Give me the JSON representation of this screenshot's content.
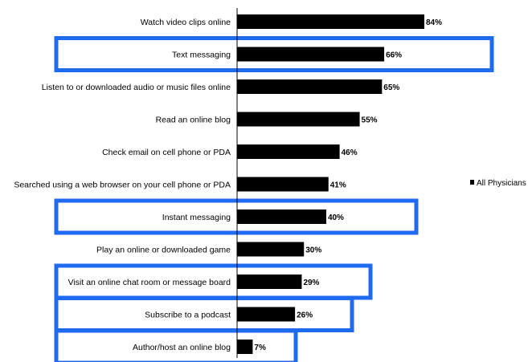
{
  "chart_data": {
    "type": "bar",
    "orientation": "horizontal",
    "categories": [
      "Watch video clips online",
      "Text messaging",
      "Listen to or downloaded audio or music files online",
      "Read an online blog",
      "Check email on cell phone or PDA",
      "Searched using a web browser on your cell phone or PDA",
      "Instant messaging",
      "Play an online or downloaded game",
      "Visit an online chat room or message board",
      "Subscribe to a podcast",
      "Author/host an online blog"
    ],
    "series": [
      {
        "name": "All Physicians",
        "values": [
          84,
          66,
          65,
          55,
          46,
          41,
          40,
          30,
          29,
          26,
          7
        ],
        "labels": [
          "84%",
          "66%",
          "65%",
          "55%",
          "46%",
          "41%",
          "40%",
          "30%",
          "29%",
          "26%",
          "7%"
        ]
      }
    ],
    "xlim": [
      0,
      100
    ],
    "highlighted_categories": [
      "Text messaging",
      "Instant messaging",
      "Visit an online chat room or message board",
      "Subscribe to a podcast",
      "Author/host an online blog"
    ],
    "legend_position": "right",
    "colors": {
      "bar": "#000000",
      "highlight": "#1e6bf0"
    },
    "grid": false
  }
}
